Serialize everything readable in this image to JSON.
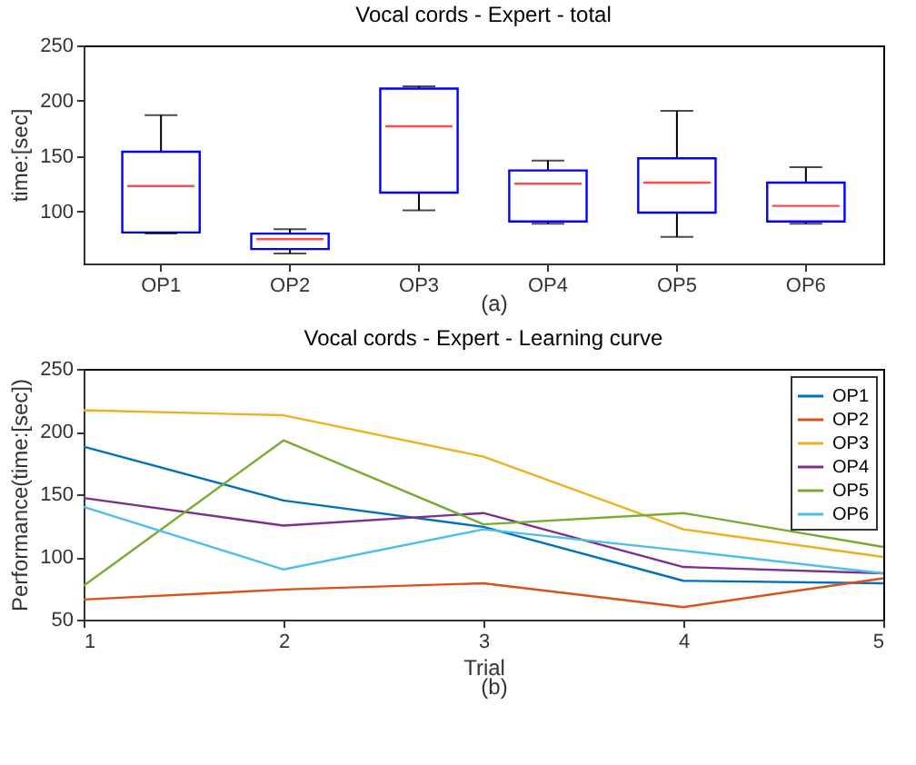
{
  "chart_data": [
    {
      "type": "box",
      "title": "Vocal cords - Expert - total",
      "ylabel": "time:[sec]",
      "annotations": [
        "(a)"
      ],
      "color": "#0000ff",
      "grid": false,
      "categories": [
        "OP1",
        "OP2",
        "OP3",
        "OP4",
        "OP5",
        "OP6"
      ],
      "boxes": [
        {
          "low": 80,
          "q1": 81,
          "median": 123,
          "q3": 154,
          "high": 187
        },
        {
          "low": 62,
          "q1": 66,
          "median": 75,
          "q3": 80,
          "high": 84
        },
        {
          "low": 101,
          "q1": 117,
          "median": 177,
          "q3": 211,
          "high": 213
        },
        {
          "low": 89,
          "q1": 91,
          "median": 125,
          "q3": 137,
          "high": 146
        },
        {
          "low": 77,
          "q1": 99,
          "median": 126,
          "q3": 148,
          "high": 191
        },
        {
          "low": 89,
          "q1": 91,
          "median": 105,
          "q3": 126,
          "high": 140
        }
      ],
      "ylim": [
        53,
        250
      ],
      "yticks": [
        100,
        150,
        200,
        250
      ]
    },
    {
      "type": "line",
      "title": "Vocal cords - Expert - Learning curve",
      "xlabel": "Trial",
      "ylabel": "Performance(time:[sec])",
      "annotations": [
        "(b)"
      ],
      "grid": false,
      "legend": "top right",
      "x": [
        1,
        2,
        3,
        4,
        5
      ],
      "xlim": [
        1,
        5
      ],
      "xticks": [
        1,
        2,
        3,
        4,
        5
      ],
      "ylim": [
        50,
        250
      ],
      "yticks": [
        50,
        100,
        150,
        200,
        250
      ],
      "series": [
        {
          "name": "OP1",
          "color": "#0072bd",
          "values": [
            188,
            145,
            124,
            81,
            79
          ]
        },
        {
          "name": "OP2",
          "color": "#d95319",
          "values": [
            66,
            74,
            79,
            60,
            83
          ]
        },
        {
          "name": "OP3",
          "color": "#edb120",
          "values": [
            217,
            213,
            180,
            122,
            100
          ]
        },
        {
          "name": "OP4",
          "color": "#7e2f8e",
          "values": [
            147,
            125,
            135,
            92,
            87
          ]
        },
        {
          "name": "OP5",
          "color": "#77ac30",
          "values": [
            77,
            193,
            126,
            135,
            108
          ]
        },
        {
          "name": "OP6",
          "color": "#4dbeee",
          "values": [
            140,
            90,
            122,
            105,
            87
          ]
        }
      ]
    }
  ]
}
